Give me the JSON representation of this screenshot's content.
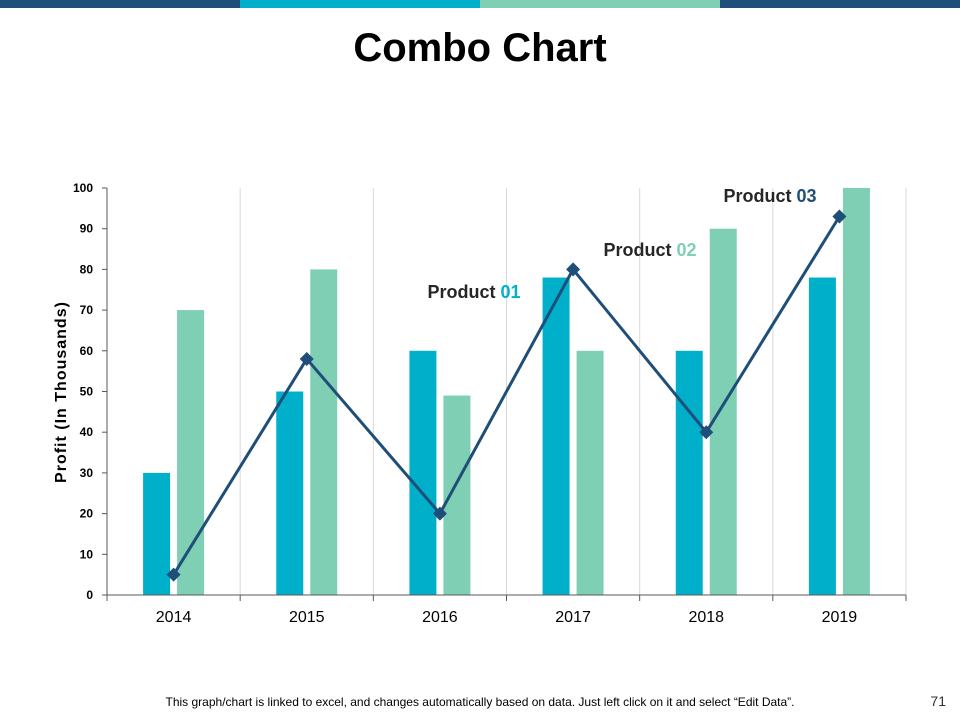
{
  "slide": {
    "title": "Combo Chart",
    "footer_note": "This graph/chart is linked to excel, and changes automatically based on data. Just left click on it and select “Edit Data”.",
    "page_number": "71",
    "top_bar_colors": [
      "#1F4E79",
      "#00B0CB",
      "#7ECFB3",
      "#1F4E79"
    ]
  },
  "chart_data": {
    "type": "bar",
    "title": "",
    "xlabel": "",
    "ylabel": "Profit  (In Thousands)",
    "ylim": [
      0,
      100
    ],
    "yticks": [
      0,
      10,
      20,
      30,
      40,
      50,
      60,
      70,
      80,
      90,
      100
    ],
    "categories": [
      "2014",
      "2015",
      "2016",
      "2017",
      "2018",
      "2019"
    ],
    "grid": "vertical",
    "series": [
      {
        "name": "Product 01",
        "kind": "bar",
        "color": "#00B0CB",
        "values": [
          30,
          50,
          60,
          78,
          60,
          78
        ]
      },
      {
        "name": "Product 02",
        "kind": "bar",
        "color": "#7ECFB3",
        "values": [
          70,
          80,
          49,
          60,
          90,
          100
        ]
      },
      {
        "name": "Product 03",
        "kind": "line",
        "color": "#1F4E79",
        "values": [
          5,
          58,
          20,
          80,
          40,
          93
        ]
      }
    ],
    "annotations": [
      {
        "prefix": "Product ",
        "suffix": "01",
        "series": "Product 01",
        "near_category": "2016"
      },
      {
        "prefix": "Product ",
        "suffix": "02",
        "series": "Product 02",
        "near_category": "2017"
      },
      {
        "prefix": "Product ",
        "suffix": "03",
        "series": "Product 03",
        "near_category": "2018"
      }
    ]
  }
}
